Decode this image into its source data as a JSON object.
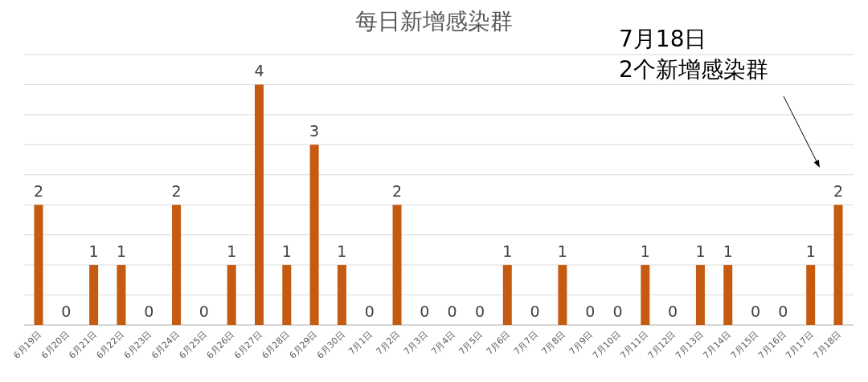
{
  "chart_data": {
    "type": "bar",
    "title": "每日新增感染群",
    "categories": [
      "6月19日",
      "6月20日",
      "6月21日",
      "6月22日",
      "6月23日",
      "6月24日",
      "6月25日",
      "6月26日",
      "6月27日",
      "6月28日",
      "6月29日",
      "6月30日",
      "7月1日",
      "7月2日",
      "7月3日",
      "7月4日",
      "7月5日",
      "7月6日",
      "7月7日",
      "7月8日",
      "7月9日",
      "7月10日",
      "7月11日",
      "7月12日",
      "7月13日",
      "7月14日",
      "7月15日",
      "7月16日",
      "7月17日",
      "7月18日"
    ],
    "values": [
      2,
      0,
      1,
      1,
      0,
      2,
      0,
      1,
      4,
      1,
      3,
      1,
      0,
      2,
      0,
      0,
      0,
      1,
      0,
      1,
      0,
      0,
      1,
      0,
      1,
      1,
      0,
      0,
      1,
      2
    ],
    "color": "#c55a11",
    "ylim": [
      0,
      4.5
    ],
    "yticks": [
      {
        "value": 0,
        "label": null
      },
      {
        "value": 0.5,
        "label": null
      },
      {
        "value": 1,
        "label": null
      },
      {
        "value": 1.5,
        "label": null
      },
      {
        "value": 2,
        "label": null
      },
      {
        "value": 2.5,
        "label": null
      },
      {
        "value": 3,
        "label": null
      },
      {
        "value": 3.5,
        "label": null
      },
      {
        "value": 4,
        "label": null
      },
      {
        "value": 4.5,
        "label": null
      }
    ],
    "grid": "y",
    "data_labels": true,
    "annotations": [
      "7月18日\n2个新增感染群"
    ]
  }
}
